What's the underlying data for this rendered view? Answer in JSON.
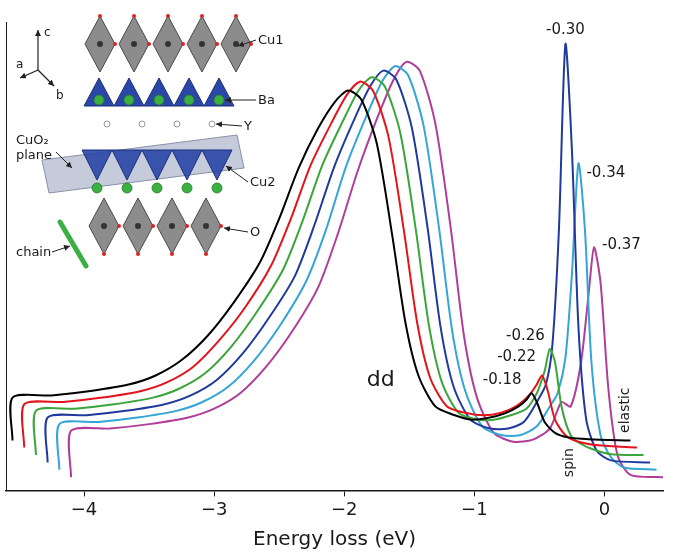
{
  "chart_data": {
    "type": "line",
    "x_label": "Energy loss (eV)",
    "xlim": [
      -4.6,
      0.45
    ],
    "xticks": [
      {
        "value": -4,
        "label": "−4"
      },
      {
        "value": -3,
        "label": "−3"
      },
      {
        "value": -2,
        "label": "−2"
      },
      {
        "value": -1,
        "label": "−1"
      },
      0
    ],
    "ylim": [
      -0.3,
      10.3
    ],
    "tick_labels": "x",
    "grid": false,
    "series": [
      {
        "name": "-0.18",
        "color": "#000000",
        "x": [
          -4.55,
          -4.55,
          -4.25,
          -3.95,
          -3.65,
          -3.45,
          -3.25,
          -3.05,
          -2.85,
          -2.65,
          -2.5,
          -2.35,
          -2.2,
          -2.07,
          -1.97,
          -1.87,
          -1.75,
          -1.63,
          -1.53,
          -1.43,
          -1.3,
          -1.15,
          -1.02,
          -0.88,
          -0.76,
          -0.66,
          -0.6,
          -0.56,
          -0.52,
          -0.46,
          -0.38,
          -0.28,
          -0.12,
          0.2
        ],
        "values": [
          0.83,
          1.8,
          1.85,
          1.95,
          2.1,
          2.3,
          2.65,
          3.2,
          3.95,
          4.85,
          5.85,
          7.0,
          7.9,
          8.5,
          8.75,
          8.55,
          7.55,
          5.45,
          3.5,
          2.3,
          1.6,
          1.4,
          1.3,
          1.35,
          1.45,
          1.6,
          1.75,
          1.9,
          1.7,
          1.25,
          1.0,
          0.9,
          0.86,
          0.83
        ]
      },
      {
        "name": "-0.22",
        "color": "#e3141b",
        "x": [
          -4.46,
          -4.46,
          -4.16,
          -3.86,
          -3.56,
          -3.36,
          -3.16,
          -2.96,
          -2.76,
          -2.56,
          -2.41,
          -2.26,
          -2.11,
          -1.98,
          -1.88,
          -1.78,
          -1.66,
          -1.54,
          -1.44,
          -1.34,
          -1.21,
          -1.06,
          -0.93,
          -0.8,
          -0.68,
          -0.58,
          -0.52,
          -0.48,
          -0.44,
          -0.38,
          -0.3,
          -0.2,
          -0.05,
          0.25
        ],
        "values": [
          0.67,
          1.65,
          1.7,
          1.8,
          1.95,
          2.15,
          2.5,
          3.1,
          3.85,
          4.8,
          5.85,
          7.05,
          7.95,
          8.65,
          8.95,
          8.75,
          7.7,
          5.55,
          3.5,
          2.25,
          1.6,
          1.45,
          1.4,
          1.45,
          1.6,
          1.85,
          2.1,
          2.3,
          2.0,
          1.3,
          0.95,
          0.8,
          0.72,
          0.67
        ]
      },
      {
        "name": "-0.26",
        "color": "#3aa53a",
        "x": [
          -4.37,
          -4.37,
          -4.07,
          -3.77,
          -3.47,
          -3.27,
          -3.07,
          -2.87,
          -2.67,
          -2.47,
          -2.32,
          -2.17,
          -2.02,
          -1.89,
          -1.79,
          -1.69,
          -1.57,
          -1.45,
          -1.35,
          -1.25,
          -1.12,
          -0.97,
          -0.85,
          -0.72,
          -0.6,
          -0.52,
          -0.46,
          -0.42,
          -0.38,
          -0.33,
          -0.26,
          -0.18,
          -0.08,
          0.05,
          0.3
        ],
        "values": [
          0.5,
          1.5,
          1.55,
          1.65,
          1.8,
          2.0,
          2.35,
          2.95,
          3.75,
          4.7,
          5.8,
          7.05,
          8.0,
          8.75,
          9.05,
          8.85,
          7.8,
          5.6,
          3.45,
          2.15,
          1.45,
          1.3,
          1.3,
          1.4,
          1.55,
          1.9,
          2.4,
          2.9,
          2.6,
          1.6,
          0.95,
          0.75,
          0.62,
          0.52,
          0.5
        ]
      },
      {
        "name": "-0.30",
        "color": "#1f3a9c",
        "x": [
          -4.28,
          -4.28,
          -3.98,
          -3.68,
          -3.38,
          -3.18,
          -2.98,
          -2.78,
          -2.58,
          -2.38,
          -2.23,
          -2.08,
          -1.93,
          -1.8,
          -1.7,
          -1.6,
          -1.48,
          -1.36,
          -1.26,
          -1.16,
          -1.03,
          -0.88,
          -0.74,
          -0.62,
          -0.52,
          -0.45,
          -0.4,
          -0.35,
          -0.3,
          -0.25,
          -0.2,
          -0.14,
          -0.06,
          0.05,
          0.35
        ],
        "values": [
          0.33,
          1.35,
          1.4,
          1.5,
          1.65,
          1.85,
          2.2,
          2.8,
          3.6,
          4.55,
          5.7,
          7.0,
          8.05,
          8.85,
          9.2,
          9.0,
          7.9,
          5.65,
          3.4,
          2.05,
          1.3,
          1.1,
          1.1,
          1.25,
          1.7,
          2.1,
          3.0,
          5.6,
          9.8,
          7.4,
          3.4,
          1.3,
          0.6,
          0.38,
          0.33
        ]
      },
      {
        "name": "-0.34",
        "color": "#35a4d6",
        "x": [
          -4.19,
          -4.19,
          -3.89,
          -3.59,
          -3.29,
          -3.09,
          -2.89,
          -2.69,
          -2.49,
          -2.29,
          -2.14,
          -1.99,
          -1.84,
          -1.71,
          -1.61,
          -1.51,
          -1.39,
          -1.27,
          -1.17,
          -1.07,
          -0.94,
          -0.79,
          -0.65,
          -0.52,
          -0.42,
          -0.36,
          -0.3,
          -0.25,
          -0.2,
          -0.15,
          -0.1,
          -0.03,
          0.05,
          0.15,
          0.4
        ],
        "values": [
          0.17,
          1.2,
          1.25,
          1.35,
          1.5,
          1.7,
          2.05,
          2.65,
          3.45,
          4.45,
          5.6,
          7.0,
          8.1,
          8.95,
          9.3,
          9.1,
          7.95,
          5.6,
          3.3,
          1.95,
          1.15,
          0.95,
          0.95,
          1.15,
          1.6,
          1.9,
          2.7,
          4.6,
          7.1,
          5.6,
          2.6,
          0.95,
          0.45,
          0.22,
          0.17
        ]
      },
      {
        "name": "-0.37",
        "color": "#b03e98",
        "x": [
          -4.1,
          -4.1,
          -3.8,
          -3.5,
          -3.2,
          -3.0,
          -2.8,
          -2.6,
          -2.4,
          -2.2,
          -2.05,
          -1.9,
          -1.75,
          -1.62,
          -1.52,
          -1.42,
          -1.3,
          -1.18,
          -1.08,
          -0.98,
          -0.85,
          -0.7,
          -0.55,
          -0.42,
          -0.33,
          -0.26,
          -0.18,
          -0.12,
          -0.08,
          -0.03,
          0.03,
          0.1,
          0.2,
          0.45
        ],
        "values": [
          0,
          1.05,
          1.1,
          1.2,
          1.35,
          1.55,
          1.9,
          2.5,
          3.3,
          4.3,
          5.5,
          6.9,
          8.1,
          9.0,
          9.4,
          9.2,
          8.0,
          5.6,
          3.2,
          1.8,
          1.0,
          0.8,
          0.85,
          1.1,
          1.7,
          1.6,
          2.6,
          4.2,
          5.2,
          4.4,
          2.0,
          0.5,
          0.05,
          0
        ]
      }
    ],
    "annotations": [
      "dd",
      "spin",
      "elastic"
    ],
    "inset": {
      "axis_labels": [
        "c",
        "a",
        "b"
      ],
      "labels": [
        "Cu1",
        "Ba",
        "Y",
        "CuO₂ plane",
        "Cu2",
        "O",
        "chain"
      ]
    }
  }
}
